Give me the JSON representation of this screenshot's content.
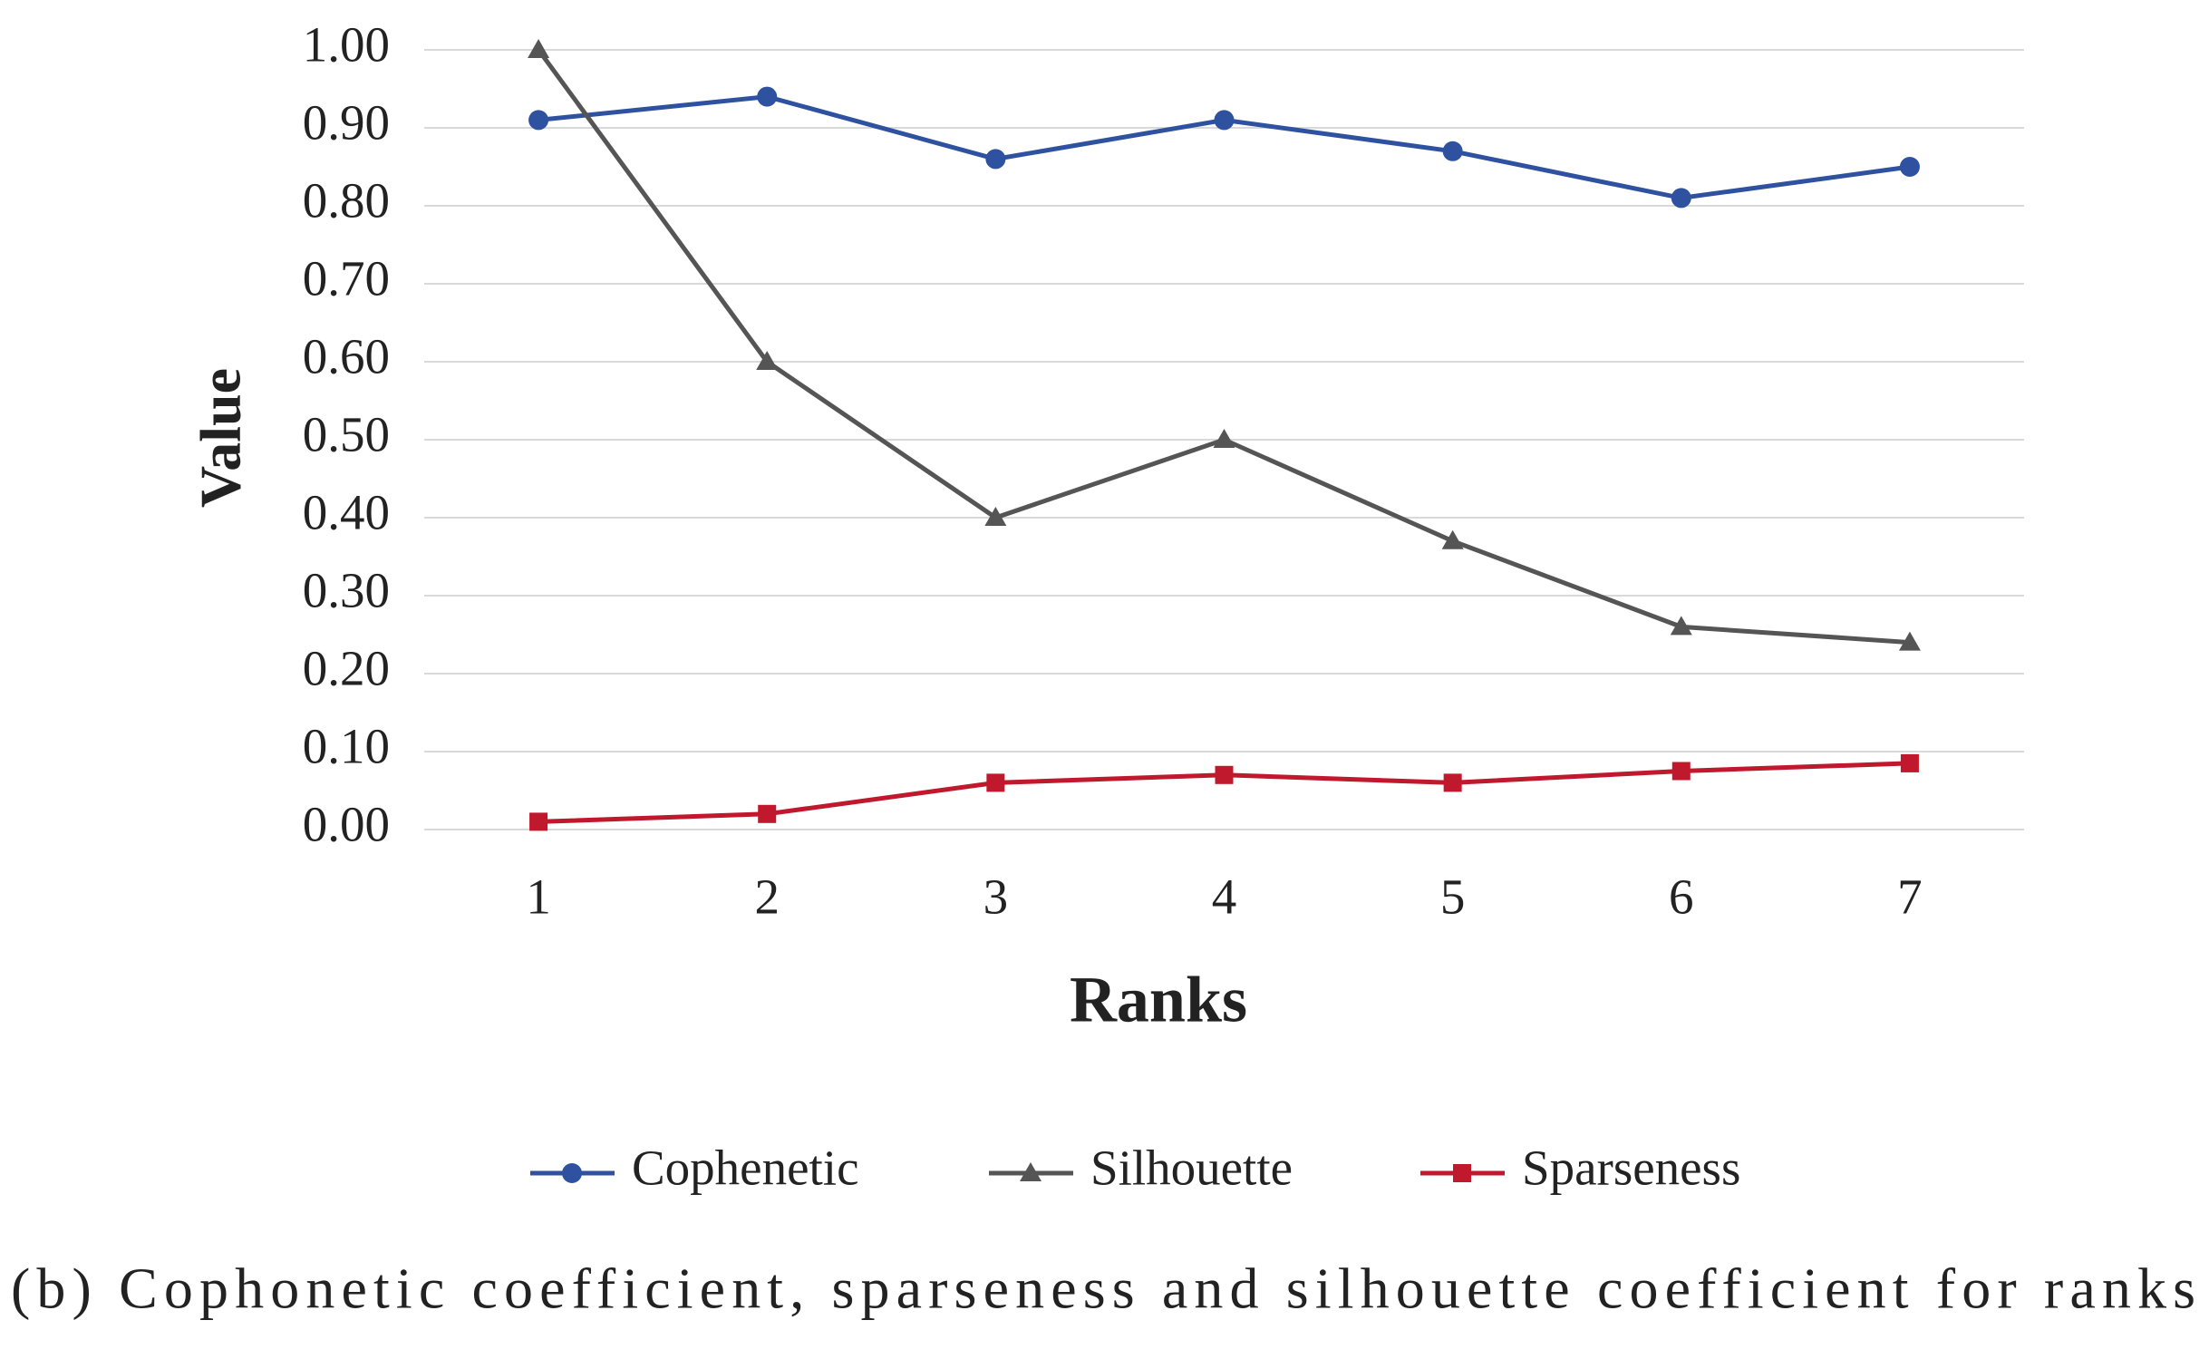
{
  "chart_data": {
    "type": "line",
    "y_label": "Value",
    "x_label": "Ranks",
    "caption": "(b) Cophonetic coefficient, sparseness and silhouette coefficient for ranks",
    "categories": [
      "1",
      "2",
      "3",
      "4",
      "5",
      "6",
      "7"
    ],
    "series": [
      {
        "name": "Cophenetic",
        "color": "#2f52a0",
        "marker": "circle",
        "values": [
          0.91,
          0.94,
          0.86,
          0.91,
          0.87,
          0.81,
          0.85
        ]
      },
      {
        "name": "Silhouette",
        "color": "#555555",
        "marker": "triangle",
        "values": [
          1.0,
          0.6,
          0.4,
          0.5,
          0.37,
          0.26,
          0.24
        ]
      },
      {
        "name": "Sparseness",
        "color": "#c0182c",
        "marker": "square",
        "values": [
          0.01,
          0.02,
          0.06,
          0.07,
          0.06,
          0.075,
          0.085
        ]
      }
    ],
    "ylim": [
      0,
      1
    ],
    "yticks": [
      {
        "value": 0,
        "label": "0.00"
      },
      {
        "value": 0.1,
        "label": "0.10"
      },
      {
        "value": 0.2,
        "label": "0.20"
      },
      {
        "value": 0.3,
        "label": "0.30"
      },
      {
        "value": 0.4,
        "label": "0.40"
      },
      {
        "value": 0.5,
        "label": "0.50"
      },
      {
        "value": 0.6,
        "label": "0.60"
      },
      {
        "value": 0.7,
        "label": "0.70"
      },
      {
        "value": 0.8,
        "label": "0.80"
      },
      {
        "value": 0.9,
        "label": "0.90"
      },
      {
        "value": 1,
        "label": "1.00"
      }
    ],
    "grid": true,
    "legend": "bottom"
  }
}
